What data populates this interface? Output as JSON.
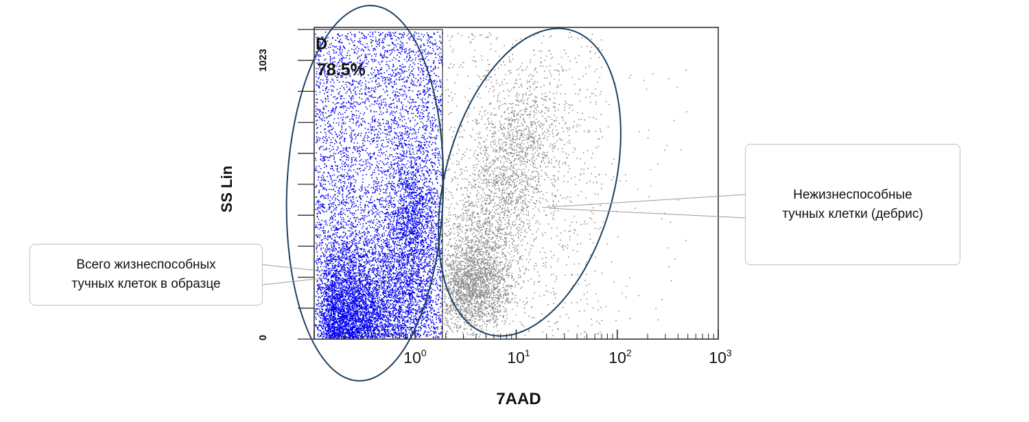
{
  "chart_data": {
    "type": "scatter",
    "xscale": "log",
    "xlabel": "7AAD",
    "ylabel": "SS Lin",
    "xlim": [
      0.1,
      1000
    ],
    "ylim": [
      0,
      1023
    ],
    "x_ticks": [
      {
        "value": 1,
        "base": "10",
        "exp": "0"
      },
      {
        "value": 10,
        "base": "10",
        "exp": "1"
      },
      {
        "value": 100,
        "base": "10",
        "exp": "2"
      },
      {
        "value": 1000,
        "base": "10",
        "exp": "3"
      }
    ],
    "y_ticks": [
      {
        "value": 0,
        "label": "0"
      },
      {
        "value": 1023,
        "label": "1023"
      }
    ],
    "gate": {
      "label": "D",
      "percent": "78.5%",
      "x_max": 1.9
    },
    "series": [
      {
        "color": "#0000ee",
        "x_range": [
          0.1,
          1.9
        ],
        "dense_center": [
          0.25,
          90
        ]
      },
      {
        "color": "#8a8a8a",
        "x_range": [
          1.9,
          500
        ],
        "dense_center": [
          4,
          190
        ]
      }
    ],
    "annotations": [
      {
        "line1": "Всего жизнеспособных",
        "line2": "тучных клеток в образце"
      },
      {
        "line1": "Нежизнеспособные",
        "line2": "тучных клетки (дебрис)"
      }
    ]
  }
}
